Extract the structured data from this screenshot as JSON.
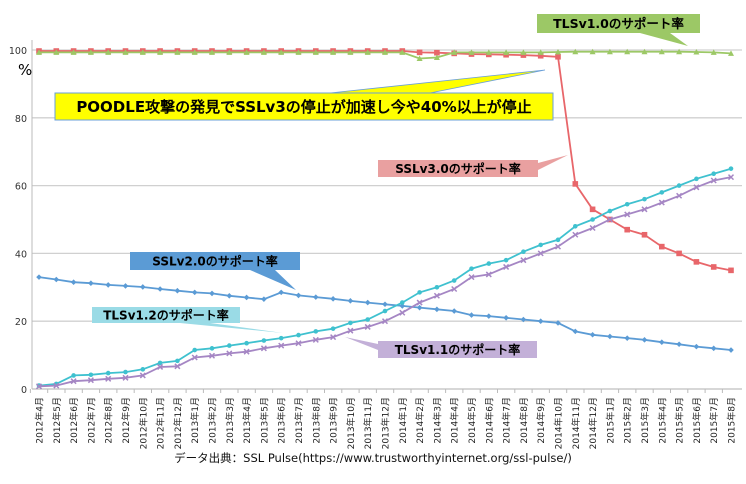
{
  "chart_data": {
    "type": "line",
    "ylabel": "%",
    "ylim": [
      0,
      100
    ],
    "yticks": [
      0,
      20,
      40,
      60,
      80,
      100
    ],
    "grid": true,
    "categories": [
      "2012年4月",
      "2012年5月",
      "2012年6月",
      "2012年7月",
      "2012年8月",
      "2012年9月",
      "2012年10月",
      "2012年11月",
      "2012年12月",
      "2013年1月",
      "2013年2月",
      "2013年3月",
      "2013年4月",
      "2013年5月",
      "2013年6月",
      "2013年7月",
      "2013年8月",
      "2013年9月",
      "2013年10月",
      "2013年11月",
      "2013年12月",
      "2014年1月",
      "2014年2月",
      "2014年3月",
      "2014年4月",
      "2014年5月",
      "2014年6月",
      "2014年7月",
      "2014年8月",
      "2014年9月",
      "2014年10月",
      "2014年11月",
      "2014年12月",
      "2015年1月",
      "2015年2月",
      "2015年3月",
      "2015年4月",
      "2015年5月",
      "2015年6月",
      "2015年7月",
      "2015年8月"
    ],
    "series": [
      {
        "name": "SSLv3.0のサポート率",
        "color": "#e8666a",
        "marker": "square",
        "values": [
          99.7,
          99.7,
          99.7,
          99.7,
          99.7,
          99.7,
          99.7,
          99.7,
          99.7,
          99.7,
          99.7,
          99.7,
          99.7,
          99.7,
          99.7,
          99.7,
          99.7,
          99.7,
          99.7,
          99.7,
          99.7,
          99.7,
          99.3,
          99.2,
          99,
          98.8,
          98.7,
          98.6,
          98.5,
          98.3,
          98,
          60.5,
          53,
          50,
          47,
          45.5,
          42,
          40,
          37.5,
          36,
          35
        ]
      },
      {
        "name": "TLSv1.0のサポート率",
        "color": "#9cc866",
        "marker": "triangle",
        "values": [
          99.3,
          99.3,
          99.3,
          99.3,
          99.3,
          99.3,
          99.3,
          99.3,
          99.3,
          99.3,
          99.3,
          99.3,
          99.3,
          99.3,
          99.3,
          99.3,
          99.3,
          99.3,
          99.3,
          99.3,
          99.3,
          99.3,
          97.5,
          97.8,
          99.3,
          99.3,
          99.3,
          99.3,
          99.3,
          99.3,
          99.4,
          99.5,
          99.5,
          99.5,
          99.5,
          99.5,
          99.5,
          99.5,
          99.4,
          99.3,
          99
        ]
      },
      {
        "name": "SSLv2.0のサポート率",
        "color": "#5b9bd5",
        "marker": "diamond",
        "values": [
          33,
          32.3,
          31.5,
          31.2,
          30.7,
          30.4,
          30.1,
          29.5,
          29,
          28.5,
          28.2,
          27.5,
          27,
          26.5,
          28.5,
          27.6,
          27.1,
          26.6,
          26,
          25.5,
          25,
          24.5,
          24,
          23.5,
          23,
          21.8,
          21.5,
          21,
          20.5,
          20,
          19.5,
          17,
          16,
          15.5,
          15,
          14.5,
          13.8,
          13.2,
          12.5,
          12,
          11.5
        ]
      },
      {
        "name": "TLSv1.2のサポート率",
        "color": "#3fc1cf",
        "marker": "circle",
        "values": [
          1,
          1.5,
          4,
          4.2,
          4.7,
          5,
          5.8,
          7.7,
          8.3,
          11.5,
          12,
          12.8,
          13.5,
          14.3,
          15,
          15.9,
          17,
          17.8,
          19.5,
          20.5,
          23,
          25.5,
          28.5,
          30,
          32,
          35.5,
          37,
          38,
          40.5,
          42.5,
          44,
          48,
          50,
          52.5,
          54.5,
          56,
          58,
          60,
          62,
          63.5,
          65
        ]
      },
      {
        "name": "TLSv1.1のサポート率",
        "color": "#a586c4",
        "marker": "x",
        "values": [
          0.8,
          1,
          2.3,
          2.6,
          3,
          3.3,
          4,
          6.5,
          6.7,
          9.3,
          9.8,
          10.5,
          11,
          12,
          12.8,
          13.5,
          14.5,
          15.3,
          17.2,
          18.3,
          20,
          22.5,
          25.5,
          27.5,
          29.5,
          33,
          33.8,
          36,
          38,
          40,
          42,
          45.5,
          47.5,
          50,
          51.5,
          53,
          55,
          57,
          59.5,
          61.5,
          62.5
        ]
      }
    ],
    "annotations": [
      {
        "text": "POODLE攻撃の発見でSSLv3の停止が加速し今や40%以上が停止",
        "color": "#ffff00"
      },
      {
        "text": "TLSv1.0のサポート率",
        "color": "#9cc866"
      },
      {
        "text": "SSLv3.0のサポート率",
        "color": "#e9a0a0"
      },
      {
        "text": "SSLv2.0のサポート率",
        "color": "#5b9bd5"
      },
      {
        "text": "TLSv1.2のサポート率",
        "color": "#9adbe6"
      },
      {
        "text": "TLSv1.1のサポート率",
        "color": "#c3b0d8"
      }
    ],
    "source": "データ出典：SSL Pulse(https://www.trustworthyinternet.org/ssl-pulse/)"
  }
}
